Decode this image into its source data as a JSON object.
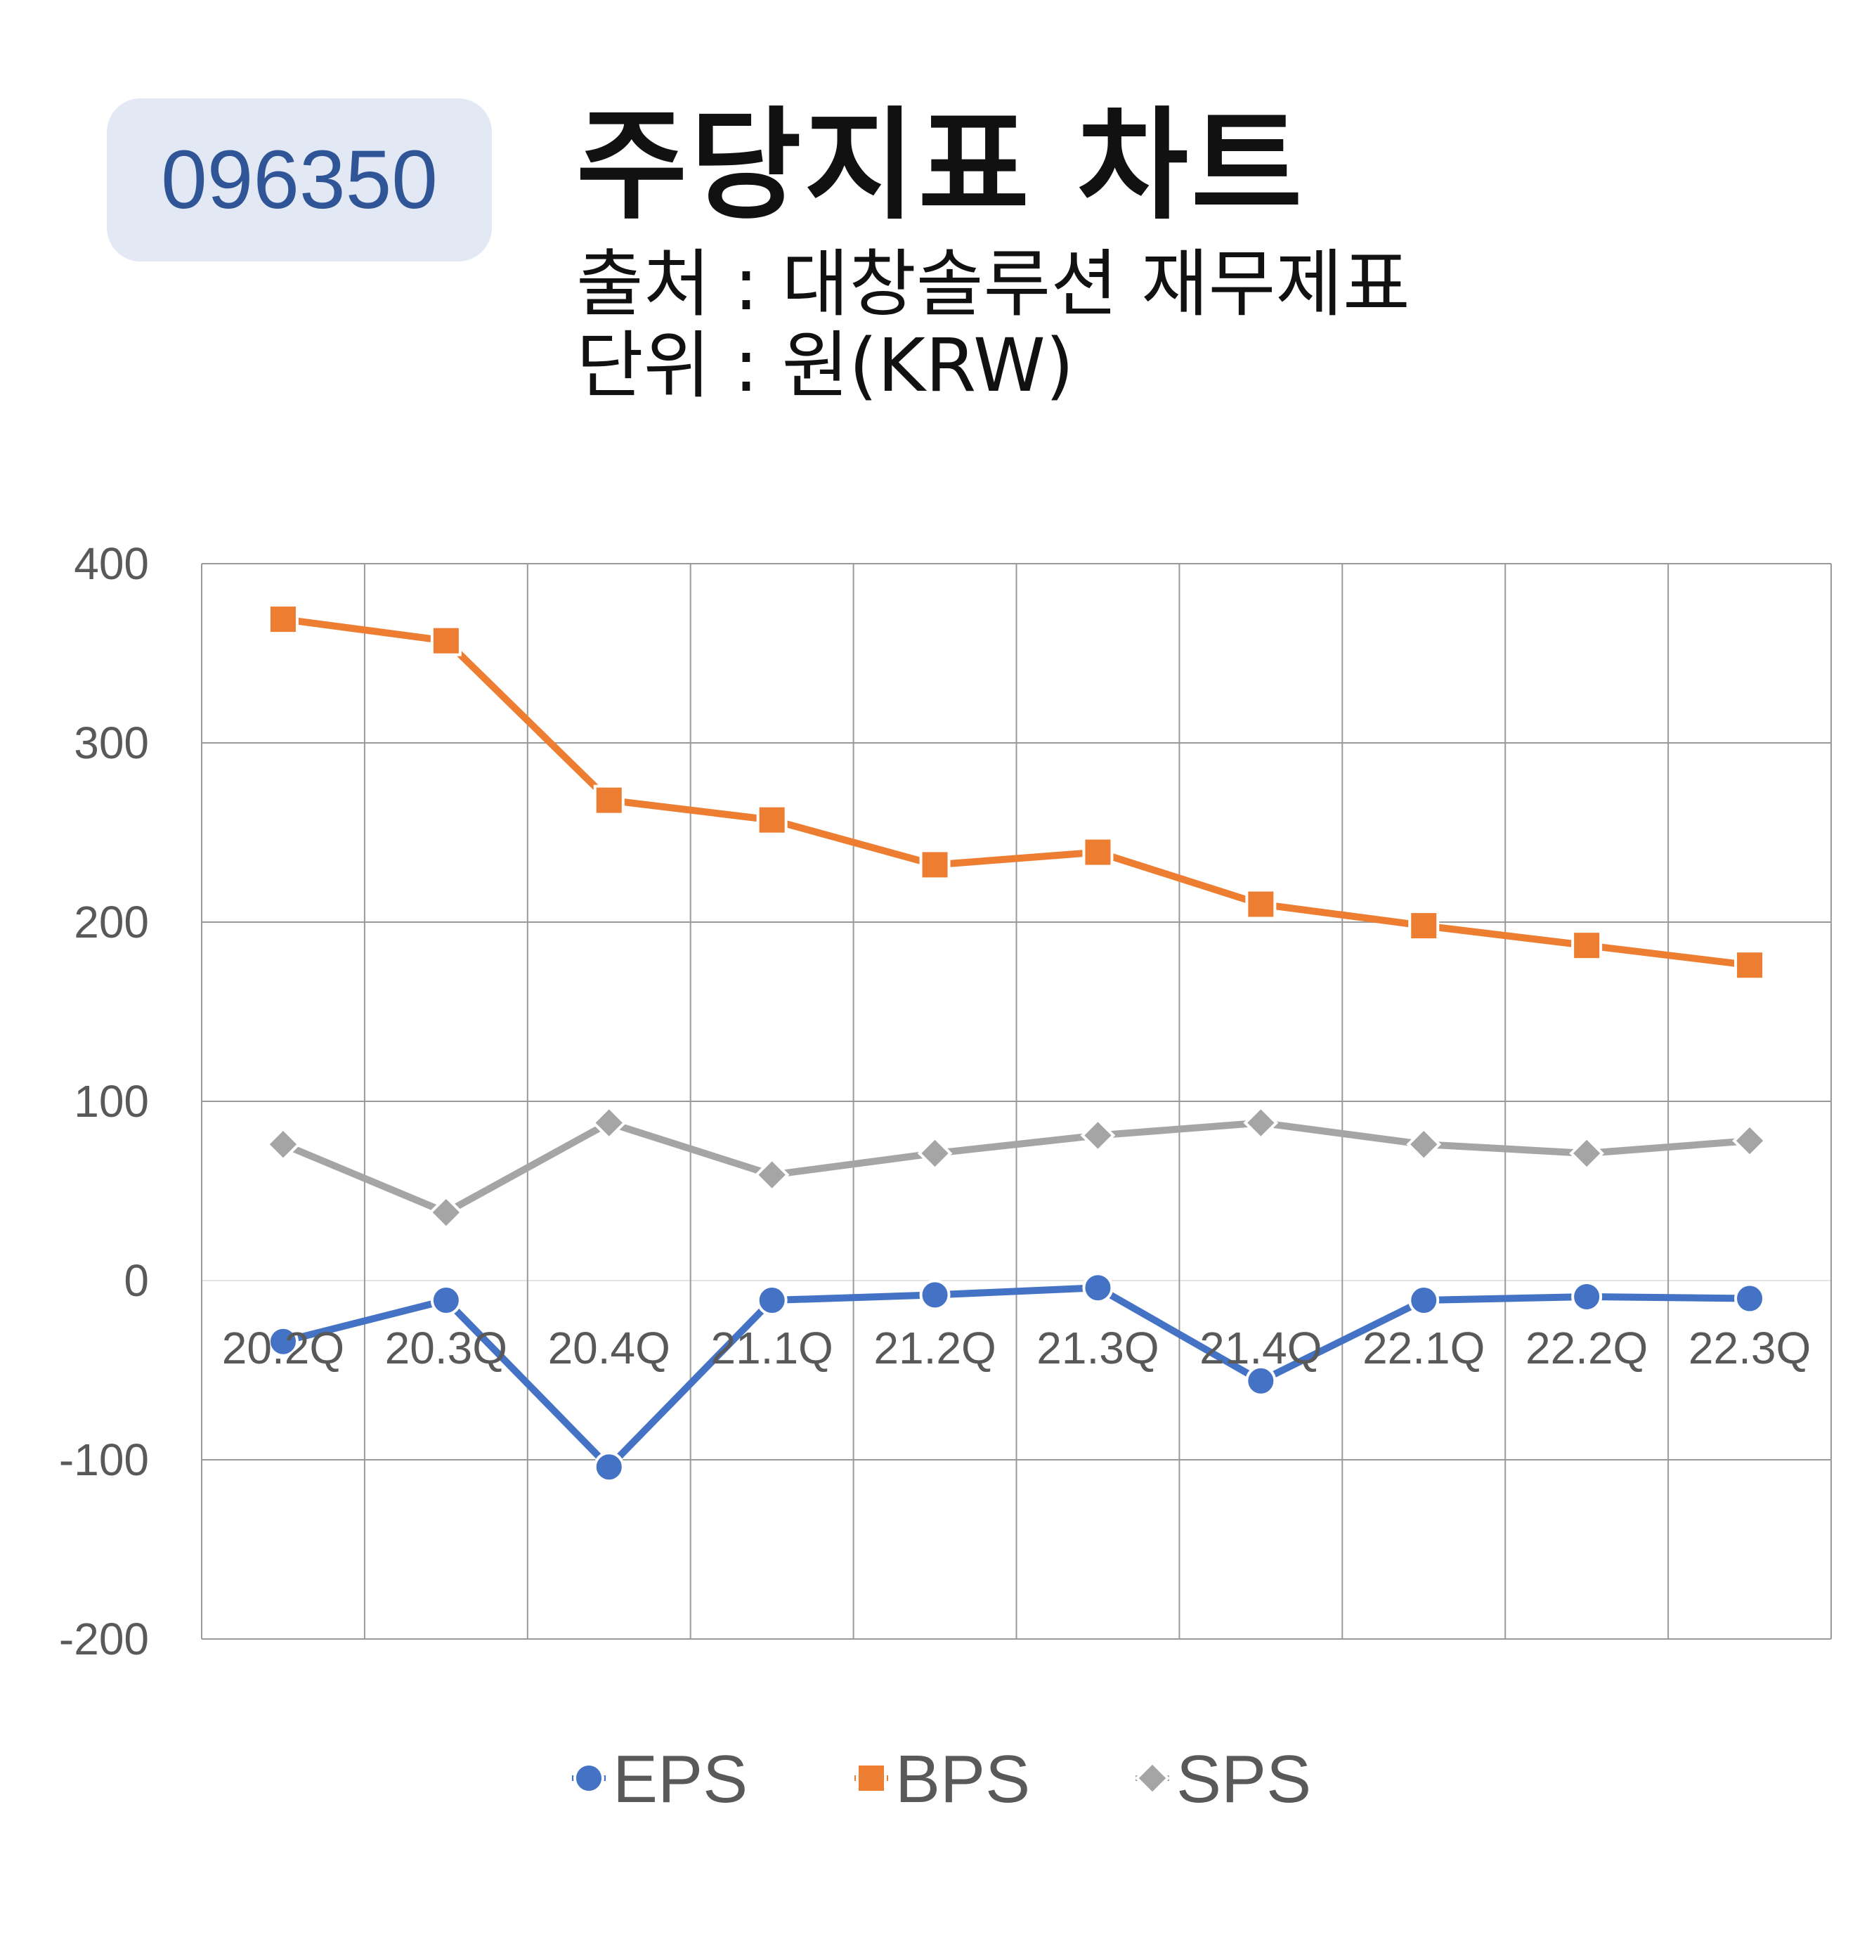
{
  "header": {
    "code": "096350",
    "title": "주당지표 차트",
    "source": "출처 : 대창솔루션 재무제표",
    "unit": "단위 : 원(KRW)"
  },
  "chart_data": {
    "type": "line",
    "categories": [
      "20.2Q",
      "20.3Q",
      "20.4Q",
      "21.1Q",
      "21.2Q",
      "21.3Q",
      "21.4Q",
      "22.1Q",
      "22.2Q",
      "22.3Q"
    ],
    "series": [
      {
        "name": "EPS",
        "values": [
          -34,
          -11,
          -104,
          -11,
          -8,
          -4,
          -56,
          -11,
          -9,
          -10
        ],
        "color": "#4472c4",
        "marker": "circle"
      },
      {
        "name": "BPS",
        "values": [
          369,
          357,
          268,
          257,
          232,
          239,
          210,
          198,
          187,
          176
        ],
        "color": "#ed7d31",
        "marker": "square"
      },
      {
        "name": "SPS",
        "values": [
          76,
          38,
          88,
          59,
          71,
          81,
          88,
          76,
          71,
          78
        ],
        "color": "#a5a5a5",
        "marker": "diamond"
      }
    ],
    "ylim": [
      -200,
      400
    ],
    "yticks": [
      -200,
      -100,
      0,
      100,
      200,
      300,
      400
    ],
    "xlabel": "",
    "ylabel": "",
    "grid": true,
    "legend": "bottom"
  }
}
